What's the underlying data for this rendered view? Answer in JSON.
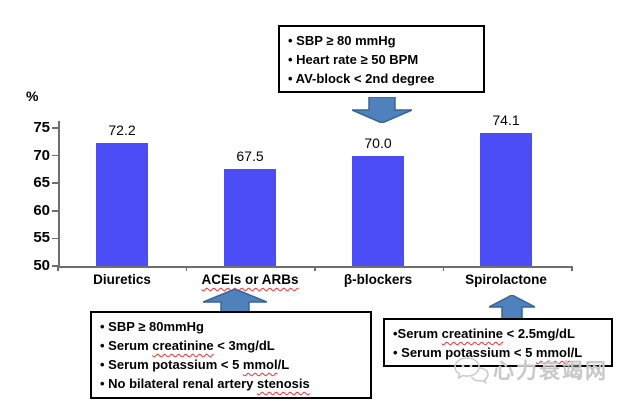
{
  "chart_data": {
    "type": "bar",
    "title": "",
    "categories": [
      "Diuretics",
      "ACEIs or ARBs",
      "β-blockers",
      "Spirolactone"
    ],
    "values": [
      72.2,
      67.5,
      70.0,
      74.1
    ],
    "value_labels": [
      "72.2",
      "67.5",
      "70.0",
      "74.1"
    ],
    "misspelled_categories": [
      "ACEIs or ARBs"
    ],
    "xlabel": "",
    "ylabel": "%",
    "ylim": [
      50,
      75
    ],
    "yticks": [
      50,
      55,
      60,
      65,
      70,
      75
    ],
    "grid": false,
    "legend_position": "none",
    "bar_color": "#4d4df8"
  },
  "annotations": {
    "top_box": {
      "lines": [
        [
          {
            "t": "• SBP ≥ 80 mmHg"
          }
        ],
        [
          {
            "t": "• Heart rate ≥ 50 BPM"
          }
        ],
        [
          {
            "t": "• AV-block < 2nd degree"
          }
        ]
      ]
    },
    "bottom_left_box": {
      "lines": [
        [
          {
            "t": "• SBP ≥ 80mmHg"
          }
        ],
        [
          {
            "t": "• Serum "
          },
          {
            "t": "creatinine",
            "sq": true
          },
          {
            "t": " < 3mg/dL"
          }
        ],
        [
          {
            "t": "• Serum potassium < 5 "
          },
          {
            "t": "mmol",
            "sq": true
          },
          {
            "t": "/L"
          }
        ],
        [
          {
            "t": "• No bilateral renal artery "
          },
          {
            "t": "stenosis",
            "sq": true
          }
        ]
      ]
    },
    "bottom_right_box": {
      "lines": [
        [
          {
            "t": "•Serum "
          },
          {
            "t": "creatinine",
            "sq": true
          },
          {
            "t": " < 2.5mg/dL"
          }
        ],
        [
          {
            "t": "• Serum potassium < 5 "
          },
          {
            "t": "mmol",
            "sq": true
          },
          {
            "t": "/L"
          }
        ]
      ]
    }
  },
  "watermark": {
    "text": "心力衰竭网"
  },
  "colors": {
    "bar": "#4d4df8",
    "arrow_fill": "#4f81bd",
    "arrow_stroke": "#3a6494",
    "squiggle": "#ff2a2a",
    "axis": "#6e6e6e",
    "watermark": "#c8c8c8"
  }
}
